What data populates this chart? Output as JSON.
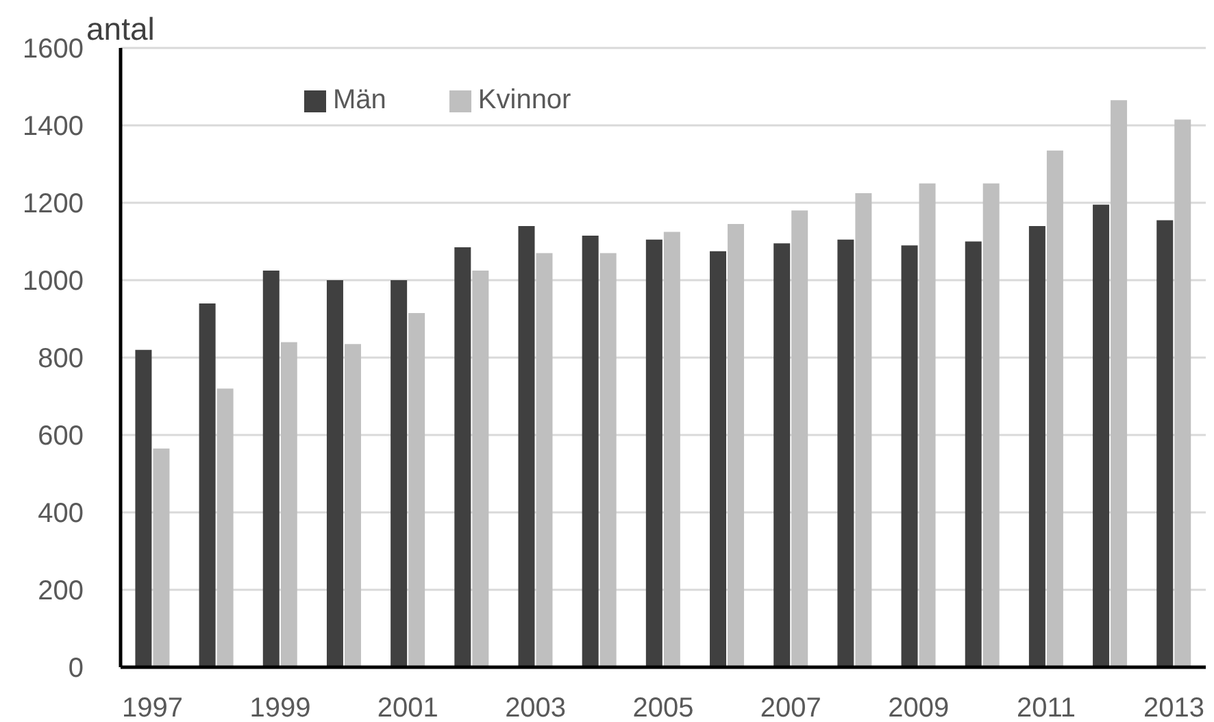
{
  "chart_data": {
    "type": "bar",
    "ylabel": "antal",
    "categories": [
      "1997",
      null,
      "1999",
      null,
      "2001",
      null,
      "2003",
      null,
      "2005",
      null,
      "2007",
      null,
      "2009",
      null,
      "2011",
      null,
      "2013"
    ],
    "series": [
      {
        "name": "Män",
        "color": "#404040",
        "values": [
          820,
          940,
          1025,
          1000,
          1000,
          1085,
          1140,
          1115,
          1105,
          1075,
          1095,
          1105,
          1090,
          1100,
          1140,
          1195,
          1155
        ]
      },
      {
        "name": "Kvinnor",
        "color": "#bfbfbf",
        "values": [
          565,
          720,
          840,
          835,
          915,
          1025,
          1070,
          1070,
          1125,
          1145,
          1180,
          1225,
          1250,
          1250,
          1335,
          1465,
          1415
        ]
      }
    ],
    "ylim": [
      0,
      1600
    ],
    "yticks": [
      0,
      200,
      400,
      600,
      800,
      1000,
      1200,
      1400,
      1600
    ],
    "grid": "y",
    "legend": "top left"
  }
}
